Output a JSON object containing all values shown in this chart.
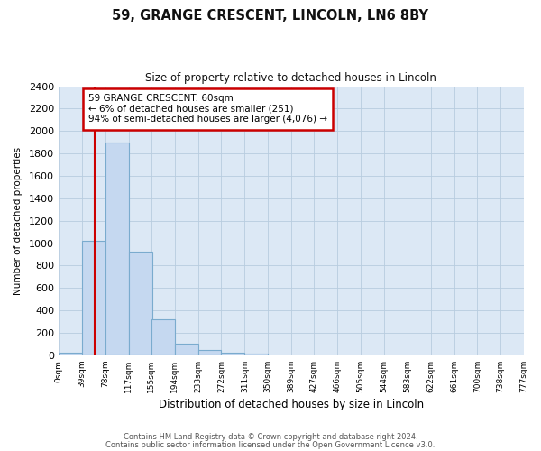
{
  "title": "59, GRANGE CRESCENT, LINCOLN, LN6 8BY",
  "subtitle": "Size of property relative to detached houses in Lincoln",
  "xlabel": "Distribution of detached houses by size in Lincoln",
  "ylabel": "Number of detached properties",
  "bin_labels": [
    "0sqm",
    "39sqm",
    "78sqm",
    "117sqm",
    "155sqm",
    "194sqm",
    "233sqm",
    "272sqm",
    "311sqm",
    "350sqm",
    "389sqm",
    "427sqm",
    "466sqm",
    "505sqm",
    "544sqm",
    "583sqm",
    "622sqm",
    "661sqm",
    "700sqm",
    "738sqm",
    "777sqm"
  ],
  "bin_left_edges": [
    0,
    39,
    78,
    117,
    155,
    194,
    233,
    272,
    311,
    350,
    389,
    427,
    466,
    505,
    544,
    583,
    622,
    661,
    700,
    738,
    777
  ],
  "bar_heights": [
    20,
    1020,
    1900,
    920,
    320,
    105,
    45,
    25,
    15,
    0,
    0,
    0,
    0,
    0,
    0,
    0,
    0,
    0,
    0,
    0,
    0
  ],
  "bar_color": "#c5d8f0",
  "bar_edge_color": "#7aabce",
  "property_line_x": 60,
  "property_line_color": "#cc0000",
  "ylim": [
    0,
    2400
  ],
  "yticks": [
    0,
    200,
    400,
    600,
    800,
    1000,
    1200,
    1400,
    1600,
    1800,
    2000,
    2200,
    2400
  ],
  "annotation_text": "59 GRANGE CRESCENT: 60sqm\n← 6% of detached houses are smaller (251)\n94% of semi-detached houses are larger (4,076) →",
  "annotation_box_facecolor": "#ffffff",
  "annotation_box_edgecolor": "#cc0000",
  "footer_line1": "Contains HM Land Registry data © Crown copyright and database right 2024.",
  "footer_line2": "Contains public sector information licensed under the Open Government Licence v3.0.",
  "fig_facecolor": "#ffffff",
  "axes_facecolor": "#dce8f5"
}
